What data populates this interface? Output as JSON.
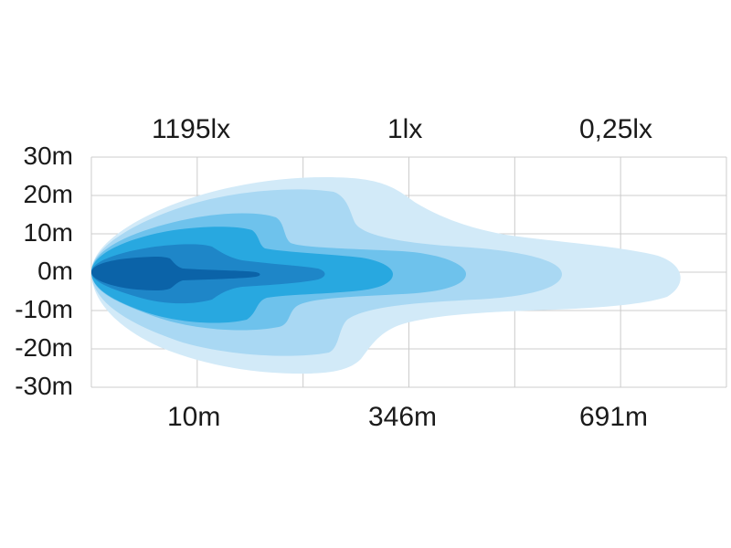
{
  "chart_data": {
    "type": "area",
    "title": "",
    "xlabel": "",
    "ylabel": "",
    "top_labels": [
      "1195lx",
      "1lx",
      "0,25lx"
    ],
    "bottom_labels": [
      "10m",
      "346m",
      "691m"
    ],
    "y_ticks": [
      "30m",
      "20m",
      "10m",
      "0m",
      "-10m",
      "-20m",
      "-30m"
    ],
    "ylim": [
      -30,
      30
    ],
    "grid": true,
    "contour_colors": [
      "#d2eaf8",
      "#a9d8f3",
      "#6ec2ec",
      "#28a8e0",
      "#1e86c8",
      "#0b63a8"
    ]
  }
}
